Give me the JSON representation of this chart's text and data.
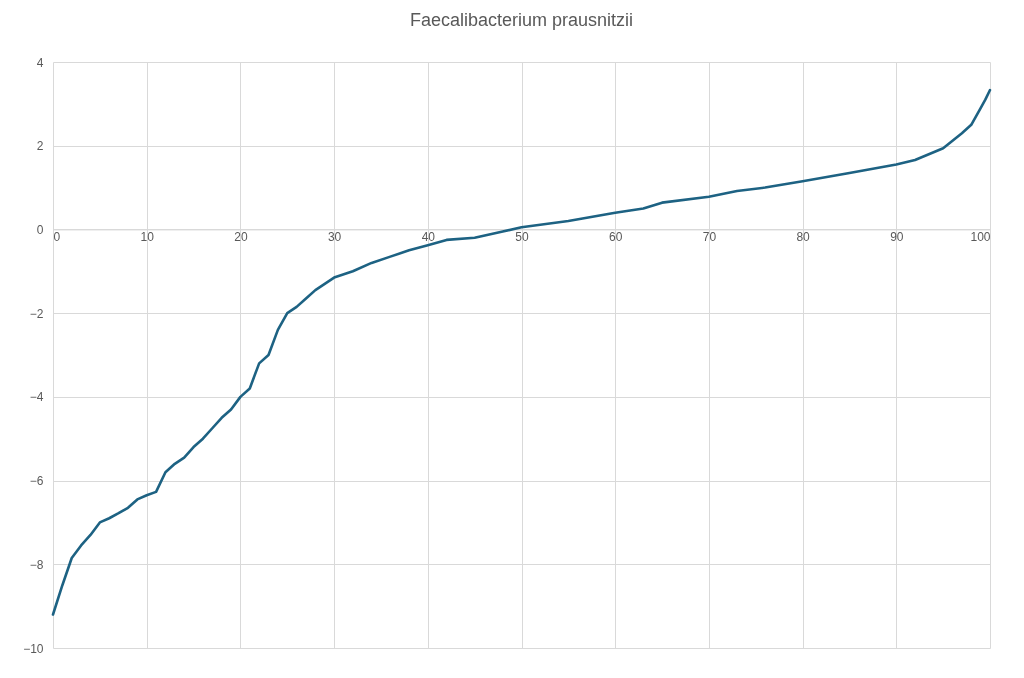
{
  "chart_data": {
    "type": "line",
    "title": "Faecalibacterium prausnitzii",
    "x": [
      0,
      1,
      2,
      3,
      4,
      5,
      6,
      7,
      8,
      9,
      10,
      11,
      12,
      13,
      14,
      15,
      16,
      17,
      18,
      19,
      20,
      21,
      22,
      23,
      24,
      25,
      26,
      27,
      28,
      29,
      30,
      32,
      34,
      36,
      38,
      40,
      42,
      45,
      48,
      50,
      55,
      60,
      63,
      65,
      70,
      73,
      76,
      80,
      85,
      90,
      92,
      95,
      97,
      98,
      99,
      99.5,
      100
    ],
    "series": [
      {
        "color": "#1d6283",
        "values": [
          -9.2,
          -8.5,
          -7.85,
          -7.55,
          -7.3,
          -7.0,
          -6.9,
          -6.78,
          -6.65,
          -6.45,
          -6.35,
          -6.27,
          -5.8,
          -5.6,
          -5.45,
          -5.2,
          -5.0,
          -4.75,
          -4.5,
          -4.3,
          -4.0,
          -3.8,
          -3.2,
          -3.0,
          -2.4,
          -2.0,
          -1.85,
          -1.65,
          -1.45,
          -1.3,
          -1.15,
          -1.0,
          -0.8,
          -0.65,
          -0.5,
          -0.38,
          -0.25,
          -0.2,
          -0.05,
          0.05,
          0.2,
          0.4,
          0.5,
          0.64,
          0.78,
          0.92,
          1.0,
          1.15,
          1.35,
          1.55,
          1.66,
          1.94,
          2.3,
          2.5,
          2.9,
          3.1,
          3.33
        ]
      }
    ],
    "xlim": [
      0,
      100
    ],
    "xticks": [
      0,
      10,
      20,
      30,
      40,
      50,
      60,
      70,
      80,
      90,
      100
    ],
    "ylim": [
      -10,
      4
    ],
    "yticks": [
      -10,
      -8,
      -6,
      -4,
      -2,
      0,
      2,
      4
    ],
    "grid": true,
    "legend": false,
    "marker": "none",
    "line_style": "solid"
  }
}
